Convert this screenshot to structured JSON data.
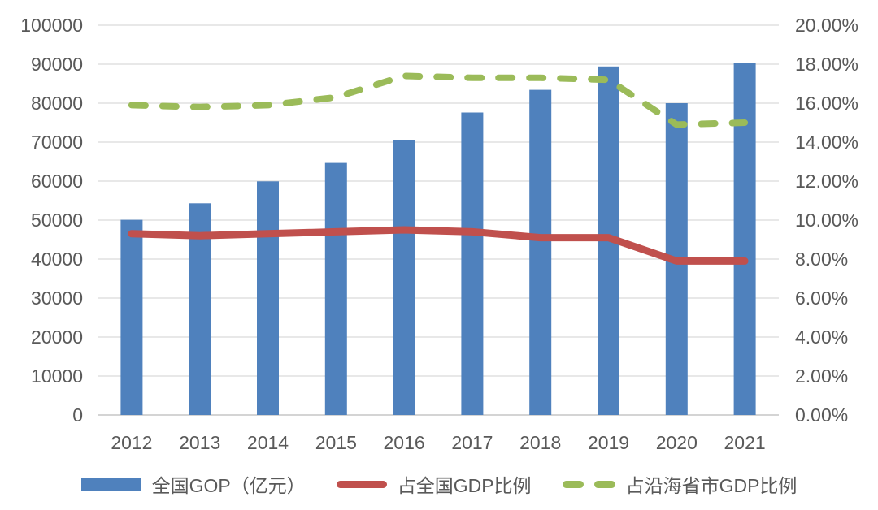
{
  "chart_data": {
    "type": "bar",
    "subtype": "combo-bar-line-dual-axis",
    "title": "",
    "categories": [
      "2012",
      "2013",
      "2014",
      "2015",
      "2016",
      "2017",
      "2018",
      "2019",
      "2020",
      "2021"
    ],
    "series": [
      {
        "name": "全国GOP（亿元）",
        "type": "bar",
        "axis": "left",
        "color": "#4F81BD",
        "values": [
          50087,
          54313,
          59936,
          64669,
          70507,
          77611,
          83415,
          89415,
          80010,
          90385
        ]
      },
      {
        "name": "占全国GDP比例",
        "type": "line",
        "style": "solid",
        "axis": "right",
        "color": "#C0504D",
        "values": [
          9.3,
          9.2,
          9.3,
          9.4,
          9.5,
          9.4,
          9.1,
          9.1,
          7.9,
          7.9
        ]
      },
      {
        "name": "占沿海省市GDP比例",
        "type": "line",
        "style": "dashed",
        "axis": "right",
        "color": "#9BBB59",
        "values": [
          15.9,
          15.8,
          15.9,
          16.3,
          17.4,
          17.3,
          17.3,
          17.2,
          14.9,
          15.0
        ]
      }
    ],
    "left_axis": {
      "min": 0,
      "max": 100000,
      "step": 10000,
      "tick_labels": [
        "0",
        "10000",
        "20000",
        "30000",
        "40000",
        "50000",
        "60000",
        "70000",
        "80000",
        "90000",
        "100000"
      ]
    },
    "right_axis": {
      "min": 0,
      "max": 20,
      "step": 2,
      "tick_labels": [
        "0.00%",
        "2.00%",
        "4.00%",
        "6.00%",
        "8.00%",
        "10.00%",
        "12.00%",
        "14.00%",
        "16.00%",
        "18.00%",
        "20.00%"
      ]
    },
    "grid": true,
    "legend_position": "bottom",
    "colors": {
      "grid": "#D9D9D9",
      "baseline": "#C6C6C6",
      "axis_text": "#595959",
      "background": "#FFFFFF"
    }
  }
}
